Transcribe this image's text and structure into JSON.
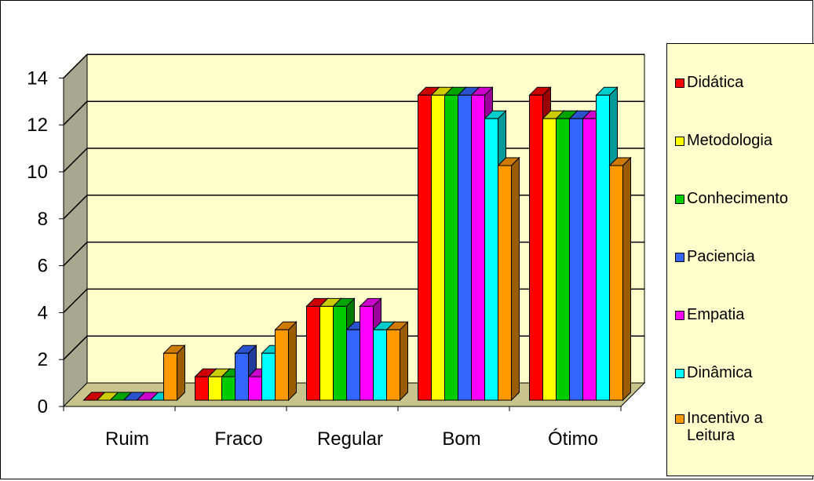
{
  "chart_data": {
    "type": "bar",
    "title": "",
    "xlabel": "",
    "ylabel": "",
    "categories": [
      "Ruim",
      "Fraco",
      "Regular",
      "Bom",
      "Ótimo"
    ],
    "yticks": [
      "0",
      "2",
      "4",
      "6",
      "8",
      "10",
      "12",
      "14"
    ],
    "ylim": [
      0,
      14
    ],
    "grid": true,
    "three_d": true,
    "legend_position": "right",
    "series": [
      {
        "name": "Didática",
        "color": "#FF0000",
        "values": [
          0,
          1,
          4,
          13,
          13
        ]
      },
      {
        "name": "Metodologia",
        "color": "#FFFF00",
        "values": [
          0,
          1,
          4,
          13,
          12
        ]
      },
      {
        "name": "Conhecimento",
        "color": "#00CC00",
        "values": [
          0,
          1,
          4,
          13,
          12
        ]
      },
      {
        "name": "Paciencia",
        "color": "#3366FF",
        "values": [
          0,
          2,
          3,
          13,
          12
        ]
      },
      {
        "name": "Empatia",
        "color": "#FF00FF",
        "values": [
          0,
          1,
          4,
          13,
          12
        ]
      },
      {
        "name": "Dinâmica",
        "color": "#00FFFF",
        "values": [
          0,
          2,
          3,
          12,
          13
        ]
      },
      {
        "name": "Incentivo a Leitura",
        "color": "#FF9900",
        "values": [
          2,
          3,
          3,
          10,
          10
        ]
      }
    ],
    "wall_color": "#FFFFCC",
    "side_wall_color": "#A8A890",
    "floor_color": "#C8C48C"
  }
}
